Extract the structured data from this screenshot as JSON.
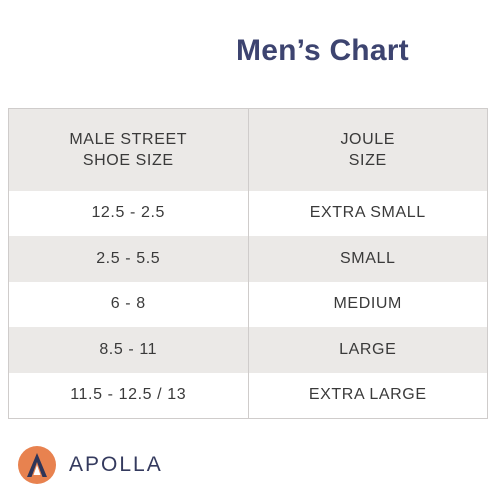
{
  "title": "Men’s Chart",
  "table": {
    "headers": [
      [
        "MALE STREET",
        "SHOE SIZE"
      ],
      [
        "JOULE",
        "SIZE"
      ]
    ],
    "rows": [
      [
        "12.5 - 2.5",
        "EXTRA SMALL"
      ],
      [
        "2.5 - 5.5",
        "SMALL"
      ],
      [
        "6 - 8",
        "MEDIUM"
      ],
      [
        "8.5 - 11",
        "LARGE"
      ],
      [
        "11.5 - 12.5 / 13",
        "EXTRA LARGE"
      ]
    ]
  },
  "brand": {
    "name": "APOLLA",
    "logo_icon": "apolla-logo-icon",
    "colors": {
      "title": "#3d4470",
      "logo_circle": "#e8824f",
      "logo_mark": "#2f3558",
      "stripe": "#ebe9e7"
    }
  }
}
